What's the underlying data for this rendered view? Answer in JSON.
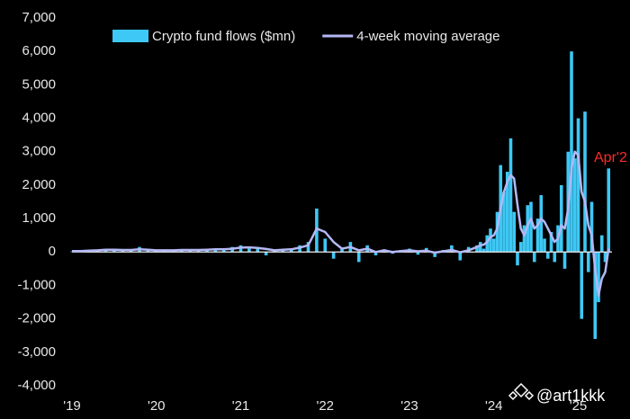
{
  "chart_data": {
    "type": "bar",
    "x": [
      2019.0,
      2019.1,
      2019.2,
      2019.3,
      2019.4,
      2019.5,
      2019.6,
      2019.7,
      2019.8,
      2019.9,
      2020.0,
      2020.1,
      2020.2,
      2020.3,
      2020.4,
      2020.5,
      2020.6,
      2020.7,
      2020.8,
      2020.9,
      2021.0,
      2021.1,
      2021.2,
      2021.3,
      2021.4,
      2021.5,
      2021.6,
      2021.7,
      2021.8,
      2021.9,
      2022.0,
      2022.1,
      2022.2,
      2022.3,
      2022.4,
      2022.5,
      2022.6,
      2022.7,
      2022.8,
      2022.9,
      2023.0,
      2023.1,
      2023.2,
      2023.3,
      2023.4,
      2023.5,
      2023.6,
      2023.7,
      2023.8,
      2023.84,
      2023.88,
      2023.92,
      2023.96,
      2024.0,
      2024.04,
      2024.08,
      2024.12,
      2024.16,
      2024.2,
      2024.24,
      2024.28,
      2024.32,
      2024.36,
      2024.4,
      2024.44,
      2024.48,
      2024.52,
      2024.56,
      2024.6,
      2024.64,
      2024.68,
      2024.72,
      2024.76,
      2024.8,
      2024.84,
      2024.88,
      2024.92,
      2024.96,
      2025.0,
      2025.04,
      2025.08,
      2025.12,
      2025.16,
      2025.2,
      2025.24,
      2025.28,
      2025.32,
      2025.36
    ],
    "series": [
      {
        "name": "Crypto fund flows ($mn)",
        "type": "bar",
        "color": "#3dc8f5",
        "values": [
          20,
          30,
          40,
          60,
          80,
          100,
          40,
          60,
          150,
          50,
          30,
          40,
          50,
          60,
          80,
          50,
          70,
          100,
          80,
          150,
          200,
          100,
          150,
          -100,
          80,
          60,
          100,
          200,
          300,
          1300,
          400,
          -200,
          100,
          300,
          -300,
          200,
          -100,
          80,
          -50,
          60,
          100,
          -80,
          120,
          -150,
          60,
          200,
          -250,
          150,
          200,
          300,
          100,
          500,
          700,
          400,
          1200,
          2600,
          1800,
          2400,
          3400,
          1200,
          -400,
          300,
          800,
          1400,
          1500,
          -300,
          1000,
          1700,
          400,
          -200,
          600,
          -300,
          800,
          2000,
          -500,
          3000,
          6000,
          2800,
          4000,
          -2000,
          4200,
          -600,
          1500,
          -2600,
          -1500,
          500,
          -300,
          2500
        ]
      },
      {
        "name": "4-week moving average",
        "type": "line",
        "color": "#b4b8f5",
        "values": [
          30,
          30,
          40,
          50,
          70,
          70,
          60,
          60,
          80,
          70,
          50,
          50,
          50,
          60,
          60,
          60,
          70,
          80,
          80,
          100,
          130,
          140,
          120,
          90,
          50,
          70,
          80,
          130,
          200,
          700,
          600,
          300,
          100,
          150,
          50,
          100,
          0,
          50,
          0,
          30,
          50,
          20,
          40,
          -20,
          20,
          60,
          -10,
          50,
          150,
          200,
          220,
          300,
          450,
          500,
          700,
          1300,
          1800,
          2100,
          2300,
          2200,
          1400,
          700,
          500,
          800,
          1000,
          700,
          800,
          1000,
          900,
          700,
          500,
          300,
          400,
          800,
          700,
          1300,
          2500,
          3000,
          2900,
          1800,
          1500,
          800,
          500,
          -500,
          -1300,
          -800,
          -600,
          100
        ]
      }
    ],
    "xlim": [
      2019,
      2025.4
    ],
    "xticks": [
      {
        "value": 2019,
        "label": "'19"
      },
      {
        "value": 2020,
        "label": "'20"
      },
      {
        "value": 2021,
        "label": "'21"
      },
      {
        "value": 2022,
        "label": "'22"
      },
      {
        "value": 2023,
        "label": "'23"
      },
      {
        "value": 2024,
        "label": "'24"
      },
      {
        "value": 2025,
        "label": "'25"
      }
    ],
    "ylim": [
      -4000,
      7000
    ],
    "yticks": [
      {
        "value": -4000,
        "label": "-4,000"
      },
      {
        "value": -3000,
        "label": "-3,000"
      },
      {
        "value": -2000,
        "label": "-2,000"
      },
      {
        "value": -1000,
        "label": "-1,000"
      },
      0,
      {
        "value": 1000,
        "label": "1,000"
      },
      {
        "value": 2000,
        "label": "2,000"
      },
      {
        "value": 3000,
        "label": "3,000"
      },
      {
        "value": 4000,
        "label": "4,000"
      },
      {
        "value": 5000,
        "label": "5,000"
      },
      {
        "value": 6000,
        "label": "6,000"
      },
      {
        "value": 7000,
        "label": "7,000"
      }
    ],
    "annotation": "Apr'2",
    "watermark": "@art1kkk"
  }
}
